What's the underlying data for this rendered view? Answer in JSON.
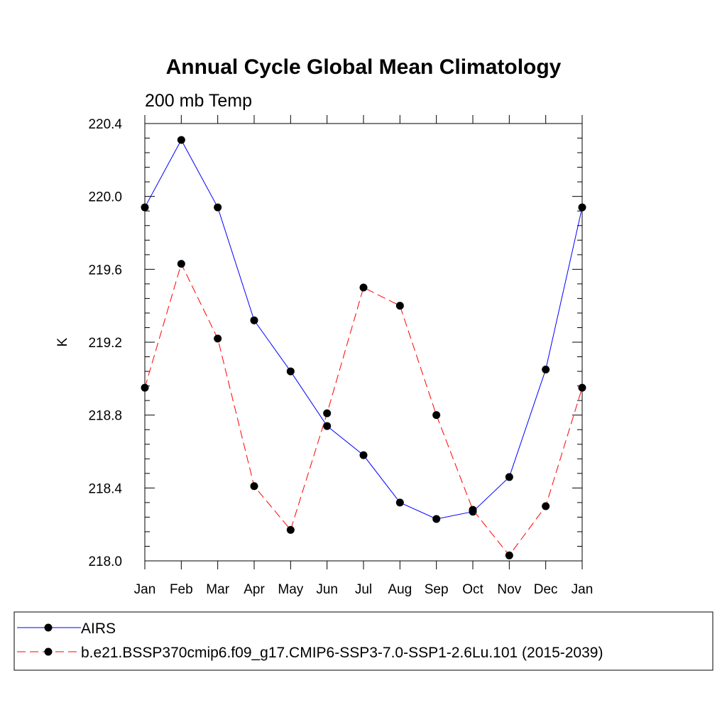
{
  "chart_data": {
    "type": "line",
    "title": "Annual Cycle Global Mean Climatology",
    "subtitle": "200 mb Temp",
    "ylabel": "K",
    "xlabel": "",
    "ylim": [
      218.0,
      220.4
    ],
    "yticks": [
      "218.0",
      "218.4",
      "218.8",
      "219.2",
      "219.6",
      "220.0",
      "220.4"
    ],
    "categories": [
      "Jan",
      "Feb",
      "Mar",
      "Apr",
      "May",
      "Jun",
      "Jul",
      "Aug",
      "Sep",
      "Oct",
      "Nov",
      "Dec",
      "Jan"
    ],
    "grid": false,
    "legend_position": "bottom",
    "series": [
      {
        "name": "AIRS",
        "color": "#0000ff",
        "line_style": "solid",
        "marker": "filled-circle",
        "values": [
          219.94,
          220.31,
          219.94,
          219.32,
          219.04,
          218.74,
          218.58,
          218.32,
          218.23,
          218.27,
          218.46,
          219.05,
          219.94
        ]
      },
      {
        "name": "b.e21.BSSP370cmip6.f09_g17.CMIP6-SSP3-7.0-SSP1-2.6Lu.101 (2015-2039)",
        "color": "#ff0000",
        "line_style": "dashed",
        "marker": "filled-circle",
        "values": [
          218.95,
          219.63,
          219.22,
          218.41,
          218.17,
          218.81,
          219.5,
          219.4,
          218.8,
          218.28,
          218.03,
          218.3,
          218.95
        ]
      }
    ]
  }
}
